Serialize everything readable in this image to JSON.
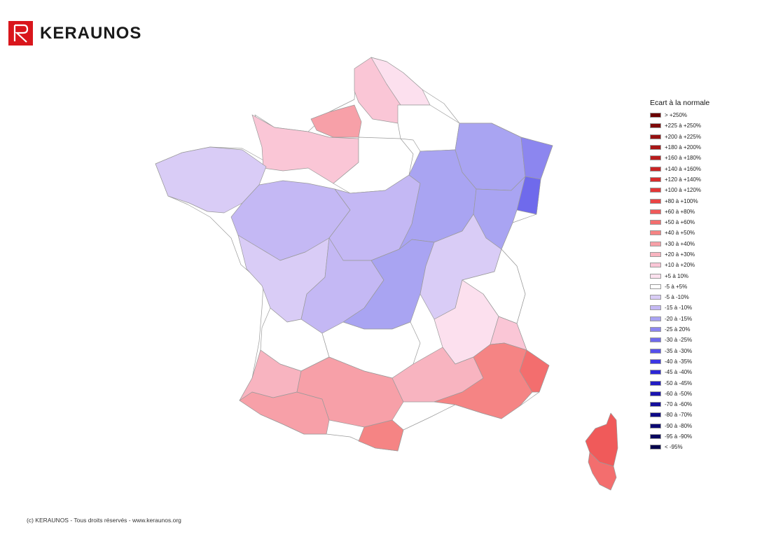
{
  "logo": {
    "text": "KERAUNOS",
    "mark_color": "#d9161c"
  },
  "footer": {
    "text": "(c) KERAUNOS - Tous droits réservés - www.keraunos.org"
  },
  "legend": {
    "title": "Ecart à la normale",
    "items": [
      {
        "label": "> +250%",
        "color": "#6b0000"
      },
      {
        "label": "+225 à +250%",
        "color": "#7f0a0a"
      },
      {
        "label": "+200 à +225%",
        "color": "#951010"
      },
      {
        "label": "+180 à +200%",
        "color": "#a81616"
      },
      {
        "label": "+160 à +180%",
        "color": "#b91c1c"
      },
      {
        "label": "+140 à +160%",
        "color": "#c92424"
      },
      {
        "label": "+120 à +140%",
        "color": "#d82c2c"
      },
      {
        "label": "+100 à +120%",
        "color": "#e33636"
      },
      {
        "label": "+80 à +100%",
        "color": "#ea4444"
      },
      {
        "label": "+60 à +80%",
        "color": "#f05a5a"
      },
      {
        "label": "+50 à +60%",
        "color": "#f36e6e"
      },
      {
        "label": "+40 à +50%",
        "color": "#f58484"
      },
      {
        "label": "+30 à +40%",
        "color": "#f7a0a8"
      },
      {
        "label": "+20 à +30%",
        "color": "#f8b4c0"
      },
      {
        "label": "+10 à +20%",
        "color": "#fac6d6"
      },
      {
        "label": "+5 à 10%",
        "color": "#fce0ee"
      },
      {
        "label": "-5 à +5%",
        "color": "#ffffff"
      },
      {
        "label": "-5 à -10%",
        "color": "#d9ccf6"
      },
      {
        "label": "-15 à -10%",
        "color": "#c4b8f4"
      },
      {
        "label": "-20 à -15%",
        "color": "#a9a4f2"
      },
      {
        "label": "-25 à 20%",
        "color": "#8c86ef"
      },
      {
        "label": "-30 à -25%",
        "color": "#6f6aec"
      },
      {
        "label": "-35 à -30%",
        "color": "#5550ea"
      },
      {
        "label": "-40 à -35%",
        "color": "#3c36e4"
      },
      {
        "label": "-45 à -40%",
        "color": "#2c26d6"
      },
      {
        "label": "-50 à -45%",
        "color": "#221cc4"
      },
      {
        "label": "-60 à -50%",
        "color": "#1a14b0"
      },
      {
        "label": "-70 à -60%",
        "color": "#140f9c"
      },
      {
        "label": "-80 à -70%",
        "color": "#0e0a86"
      },
      {
        "label": "-90 à -80%",
        "color": "#0a0872"
      },
      {
        "label": "-95 à -90%",
        "color": "#08065e"
      },
      {
        "label": "< -95%",
        "color": "#05044c"
      }
    ]
  },
  "zones": [
    {
      "id": "north",
      "color": "#fac6d6"
    },
    {
      "id": "north-tip",
      "color": "#fce0ee"
    },
    {
      "id": "seine-maritime",
      "color": "#f7a0a8"
    },
    {
      "id": "normandy",
      "color": "#fac6d6"
    },
    {
      "id": "ile-de-france",
      "color": "#ffffff"
    },
    {
      "id": "champagne",
      "color": "#ffffff"
    },
    {
      "id": "brittany",
      "color": "#d9ccf6"
    },
    {
      "id": "pays-de-loire",
      "color": "#c4b8f4"
    },
    {
      "id": "centre",
      "color": "#c4b8f4"
    },
    {
      "id": "burgundy",
      "color": "#a9a4f2"
    },
    {
      "id": "lorraine",
      "color": "#a9a4f2"
    },
    {
      "id": "alsace",
      "color": "#8c86ef"
    },
    {
      "id": "haut-rhin",
      "color": "#6f6aec"
    },
    {
      "id": "franche-comte",
      "color": "#a9a4f2"
    },
    {
      "id": "poitou",
      "color": "#d9ccf6"
    },
    {
      "id": "limousin",
      "color": "#c4b8f4"
    },
    {
      "id": "auvergne",
      "color": "#a9a4f2"
    },
    {
      "id": "rhone-alpes",
      "color": "#d9ccf6"
    },
    {
      "id": "savoie",
      "color": "#ffffff"
    },
    {
      "id": "aquitaine",
      "color": "#ffffff"
    },
    {
      "id": "midi-north",
      "color": "#ffffff"
    },
    {
      "id": "drome",
      "color": "#fce0ee"
    },
    {
      "id": "hautes-alpes",
      "color": "#fac6d6"
    },
    {
      "id": "landes",
      "color": "#f8b4c0"
    },
    {
      "id": "pyrenees",
      "color": "#f7a0a8"
    },
    {
      "id": "languedoc",
      "color": "#f7a0a8"
    },
    {
      "id": "gard",
      "color": "#f8b4c0"
    },
    {
      "id": "provence",
      "color": "#f58484"
    },
    {
      "id": "alpes-maritimes",
      "color": "#f36e6e"
    },
    {
      "id": "pyrenees-orientales",
      "color": "#f58484"
    },
    {
      "id": "corse-nord",
      "color": "#f05a5a"
    },
    {
      "id": "corse-sud",
      "color": "#f36e6e"
    }
  ]
}
